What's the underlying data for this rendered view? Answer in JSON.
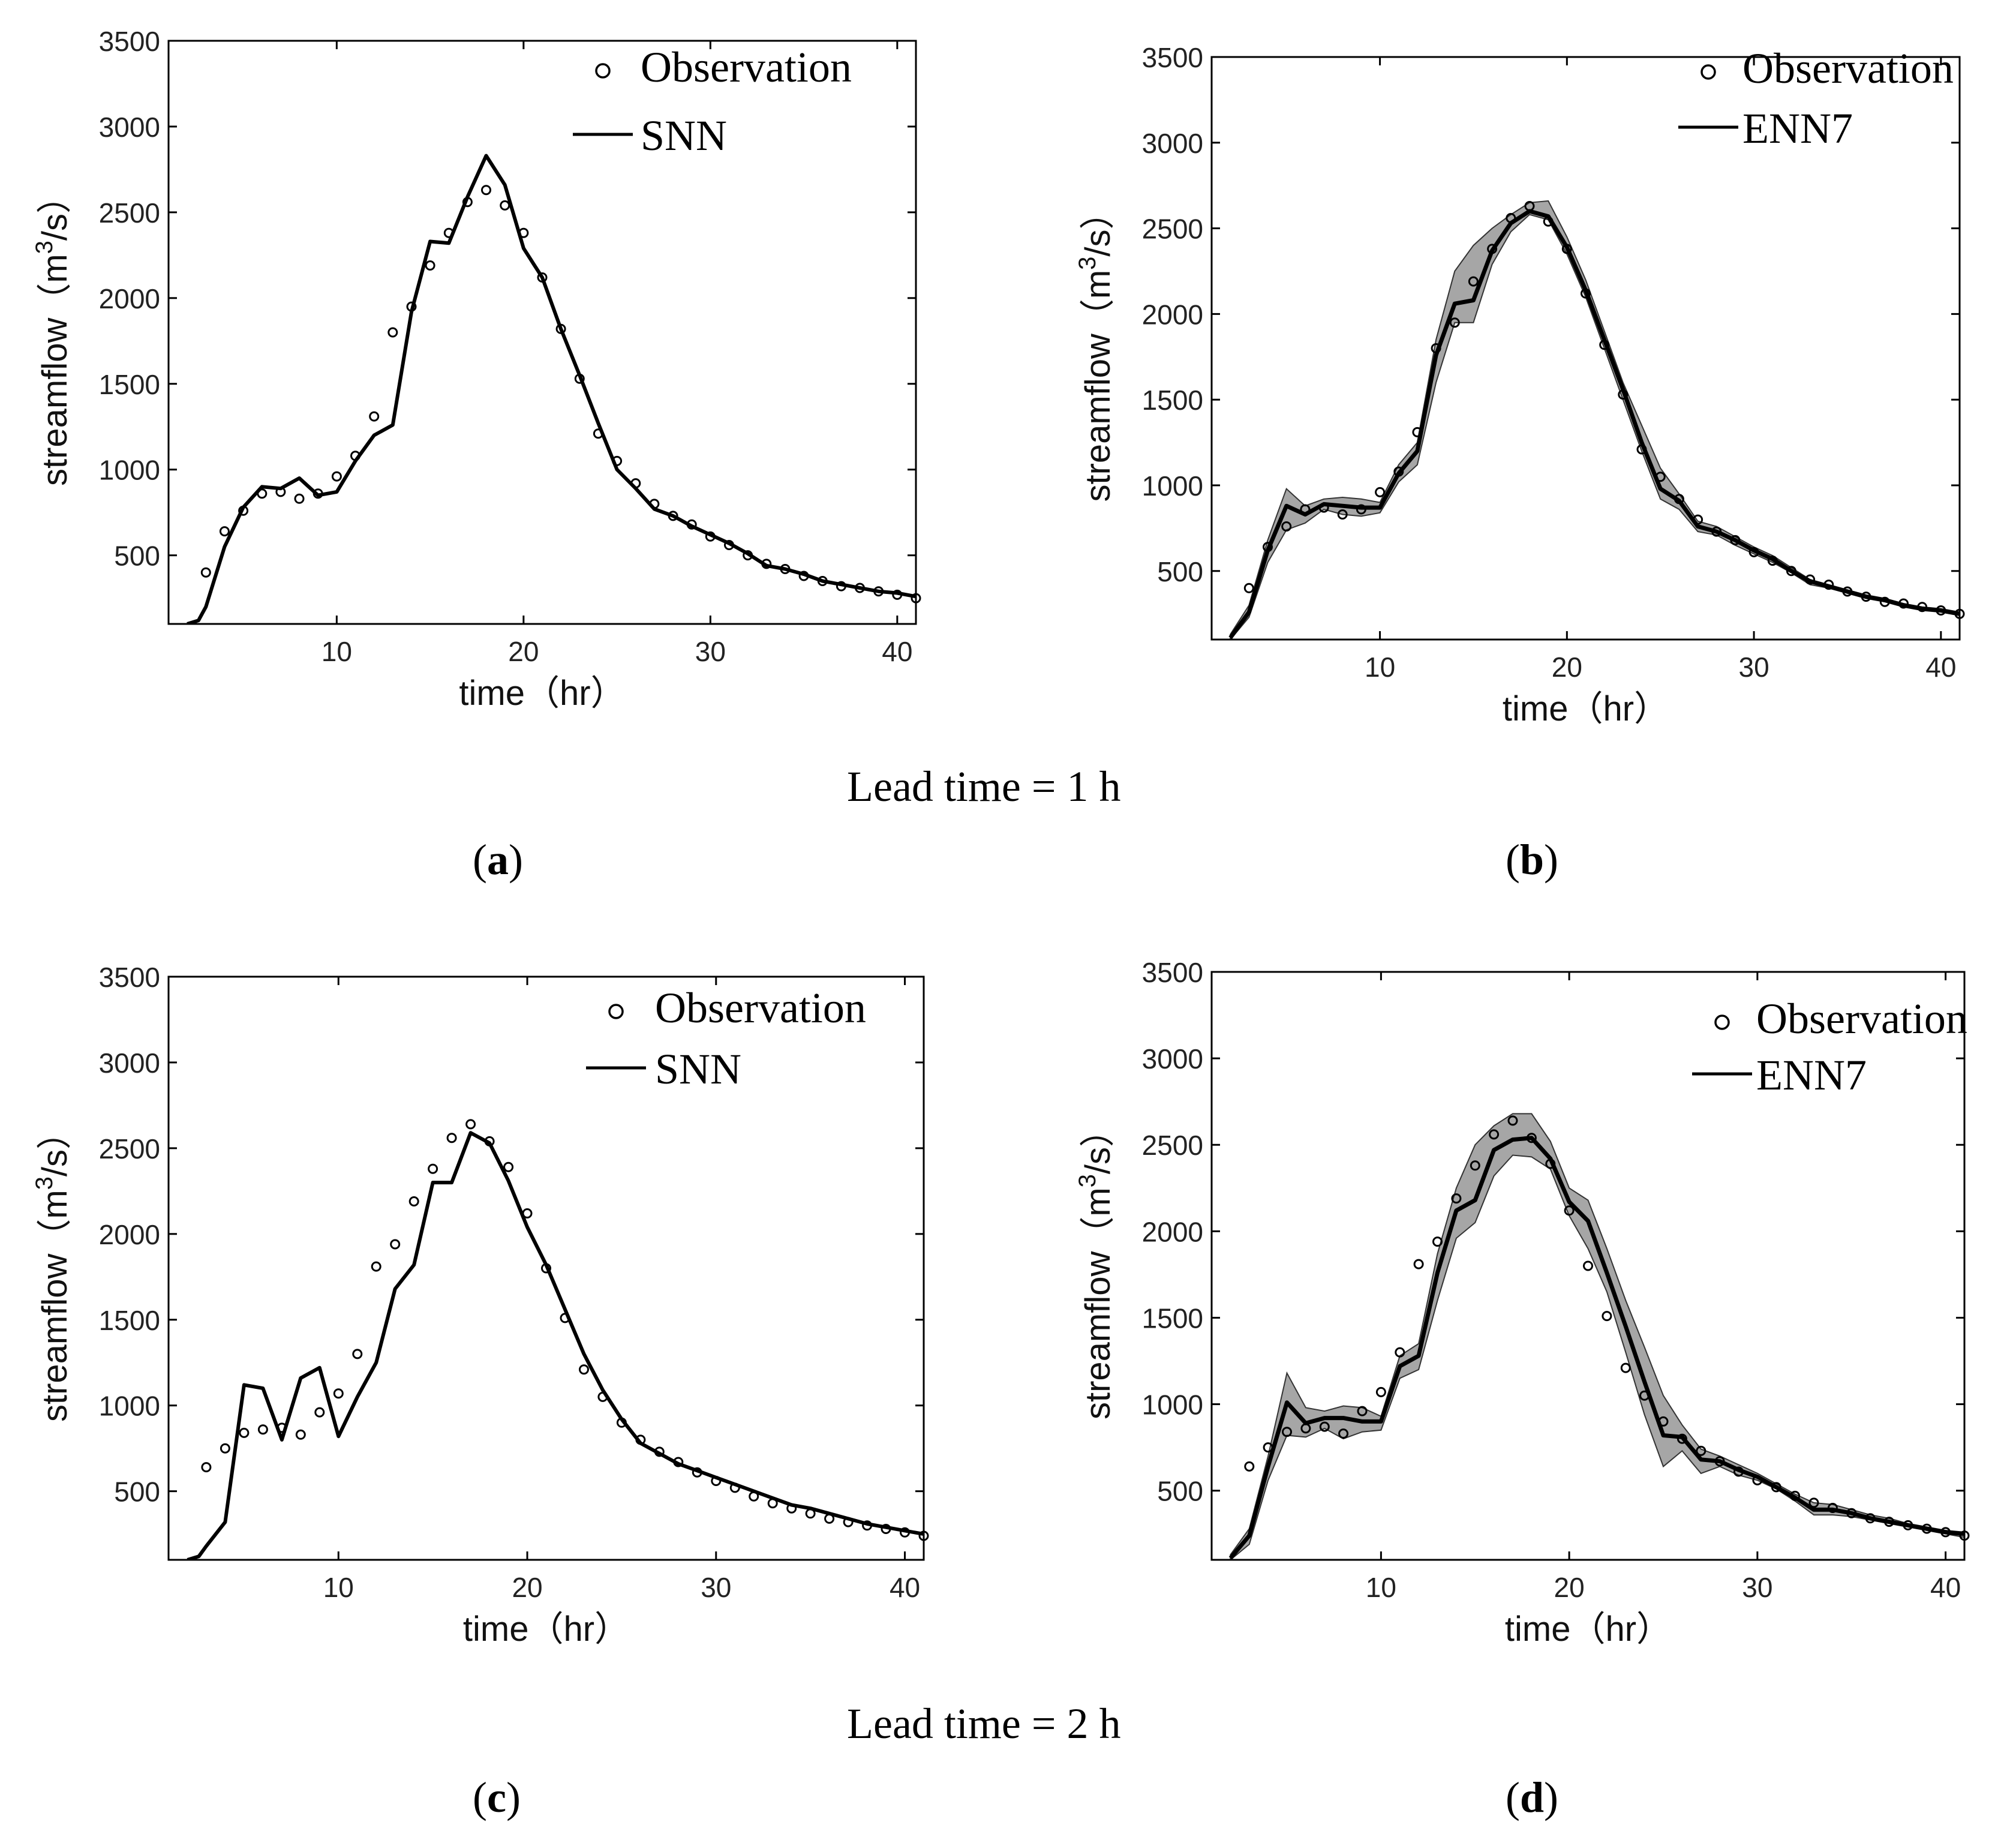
{
  "figure": {
    "captions": {
      "lead1": "Lead time = 1 h",
      "lead2": "Lead time = 2 h",
      "a": "a",
      "b": "b",
      "c": "c",
      "d": "d"
    }
  },
  "chart_data": [
    {
      "id": "a",
      "type": "line",
      "xlabel": "time（hr）",
      "ylabel_main": "streamflow（m",
      "ylabel_sup": "3",
      "ylabel_tail": "/s）",
      "xlim": [
        1,
        41
      ],
      "ylim": [
        100,
        3500
      ],
      "xticks": [
        10,
        20,
        30,
        40
      ],
      "yticks": [
        500,
        1000,
        1500,
        2000,
        2500,
        3000,
        3500
      ],
      "legend": {
        "position": "top-right",
        "entries": [
          "Observation",
          "SNN"
        ]
      },
      "observation": {
        "name": "Observation",
        "x": [
          3,
          4,
          5,
          6,
          7,
          8,
          9,
          10,
          11,
          12,
          13,
          14,
          15,
          16,
          17,
          18,
          19,
          20,
          21,
          22,
          23,
          24,
          25,
          26,
          27,
          28,
          29,
          30,
          31,
          32,
          33,
          34,
          35,
          36,
          37,
          38,
          39,
          40,
          41
        ],
        "y": [
          400,
          640,
          760,
          860,
          870,
          830,
          860,
          960,
          1080,
          1310,
          1800,
          1950,
          2190,
          2380,
          2560,
          2630,
          2540,
          2380,
          2120,
          1820,
          1530,
          1210,
          1050,
          920,
          800,
          730,
          680,
          610,
          560,
          500,
          450,
          420,
          380,
          350,
          320,
          310,
          290,
          270,
          250
        ]
      },
      "series": [
        {
          "name": "SNN",
          "x": [
            2,
            2.6,
            3,
            4,
            5,
            6,
            7,
            8,
            9,
            10,
            11,
            12,
            13,
            14,
            15,
            16,
            17,
            18,
            19,
            20,
            21,
            22,
            23,
            24,
            25,
            26,
            27,
            28,
            29,
            30,
            31,
            32,
            33,
            34,
            35,
            36,
            37,
            38,
            39,
            40,
            41
          ],
          "y": [
            100,
            120,
            200,
            550,
            780,
            900,
            890,
            950,
            850,
            870,
            1050,
            1200,
            1260,
            1920,
            2330,
            2320,
            2590,
            2830,
            2660,
            2290,
            2120,
            1820,
            1550,
            1270,
            1000,
            890,
            770,
            730,
            670,
            620,
            570,
            510,
            440,
            420,
            390,
            350,
            330,
            310,
            290,
            280,
            260
          ]
        }
      ]
    },
    {
      "id": "b",
      "type": "line",
      "xlabel": "time（hr）",
      "ylabel_main": "streamflow（m",
      "ylabel_sup": "3",
      "ylabel_tail": "/s）",
      "xlim": [
        1,
        41
      ],
      "ylim": [
        100,
        3500
      ],
      "xticks": [
        10,
        20,
        30,
        40
      ],
      "yticks": [
        500,
        1000,
        1500,
        2000,
        2500,
        3000,
        3500
      ],
      "legend": {
        "position": "top-right",
        "entries": [
          "Observation",
          "ENN7"
        ]
      },
      "observation": {
        "name": "Observation",
        "x": [
          3,
          4,
          5,
          6,
          7,
          8,
          9,
          10,
          11,
          12,
          13,
          14,
          15,
          16,
          17,
          18,
          19,
          20,
          21,
          22,
          23,
          24,
          25,
          26,
          27,
          28,
          29,
          30,
          31,
          32,
          33,
          34,
          35,
          36,
          37,
          38,
          39,
          40,
          41
        ],
        "y": [
          400,
          640,
          760,
          860,
          870,
          830,
          860,
          960,
          1080,
          1310,
          1800,
          1950,
          2190,
          2380,
          2560,
          2630,
          2540,
          2380,
          2120,
          1820,
          1530,
          1210,
          1050,
          920,
          800,
          730,
          680,
          610,
          560,
          500,
          450,
          420,
          380,
          350,
          320,
          310,
          290,
          270,
          250
        ]
      },
      "band": {
        "x": [
          2,
          3,
          4,
          5,
          6,
          7,
          8,
          9,
          10,
          11,
          12,
          13,
          14,
          15,
          16,
          17,
          18,
          19,
          20,
          21,
          22,
          23,
          24,
          25,
          26,
          27,
          28,
          29,
          30,
          31,
          32,
          33,
          34,
          35,
          36,
          37,
          38,
          39,
          40,
          41
        ],
        "upper": [
          130,
          300,
          680,
          980,
          880,
          920,
          930,
          920,
          900,
          1120,
          1250,
          1850,
          2250,
          2400,
          2500,
          2580,
          2650,
          2660,
          2450,
          2200,
          1900,
          1600,
          1350,
          1100,
          950,
          790,
          760,
          700,
          640,
          590,
          520,
          450,
          420,
          390,
          360,
          340,
          310,
          290,
          280,
          260
        ],
        "lower": [
          100,
          230,
          550,
          740,
          780,
          860,
          830,
          820,
          840,
          1020,
          1120,
          1600,
          1950,
          1950,
          2290,
          2480,
          2580,
          2550,
          2350,
          2100,
          1800,
          1500,
          1200,
          920,
          860,
          730,
          710,
          650,
          600,
          550,
          490,
          420,
          400,
          370,
          340,
          320,
          290,
          270,
          260,
          240
        ]
      },
      "series": [
        {
          "name": "ENN7",
          "x": [
            2,
            3,
            4,
            5,
            6,
            7,
            8,
            9,
            10,
            11,
            12,
            13,
            14,
            15,
            16,
            17,
            18,
            19,
            20,
            21,
            22,
            23,
            24,
            25,
            26,
            27,
            28,
            29,
            30,
            31,
            32,
            33,
            34,
            35,
            36,
            37,
            38,
            39,
            40,
            41
          ],
          "y": [
            110,
            260,
            620,
            880,
            830,
            890,
            880,
            870,
            870,
            1070,
            1200,
            1760,
            2060,
            2080,
            2370,
            2530,
            2600,
            2570,
            2390,
            2140,
            1850,
            1560,
            1250,
            980,
            910,
            760,
            730,
            680,
            620,
            570,
            500,
            440,
            410,
            380,
            350,
            330,
            300,
            280,
            270,
            250
          ]
        }
      ]
    },
    {
      "id": "c",
      "type": "line",
      "xlabel": "time（hr）",
      "ylabel_main": "streamflow（m",
      "ylabel_sup": "3",
      "ylabel_tail": "/s）",
      "xlim": [
        1,
        41
      ],
      "ylim": [
        100,
        3500
      ],
      "xticks": [
        10,
        20,
        30,
        40
      ],
      "yticks": [
        500,
        1000,
        1500,
        2000,
        2500,
        3000,
        3500
      ],
      "legend": {
        "position": "top-right",
        "entries": [
          "Observation",
          "SNN"
        ]
      },
      "observation": {
        "name": "Observation",
        "x": [
          3,
          4,
          5,
          6,
          7,
          8,
          9,
          10,
          11,
          12,
          13,
          14,
          15,
          16,
          17,
          18,
          19,
          20,
          21,
          22,
          23,
          24,
          25,
          26,
          27,
          28,
          29,
          30,
          31,
          32,
          33,
          34,
          35,
          36,
          37,
          38,
          39,
          40,
          41
        ],
        "y": [
          640,
          750,
          840,
          860,
          870,
          830,
          960,
          1070,
          1300,
          1810,
          1940,
          2190,
          2380,
          2560,
          2640,
          2540,
          2390,
          2120,
          1800,
          1510,
          1210,
          1050,
          900,
          800,
          730,
          670,
          610,
          560,
          520,
          470,
          430,
          400,
          370,
          340,
          320,
          300,
          280,
          260,
          240
        ]
      },
      "series": [
        {
          "name": "SNN",
          "x": [
            2,
            2.6,
            3,
            4,
            5,
            6,
            7,
            8,
            9,
            10,
            11,
            12,
            13,
            14,
            15,
            16,
            17,
            18,
            19,
            20,
            21,
            22,
            23,
            24,
            25,
            26,
            27,
            28,
            29,
            30,
            31,
            32,
            33,
            34,
            35,
            36,
            37,
            38,
            39,
            40,
            41
          ],
          "y": [
            100,
            120,
            180,
            320,
            1120,
            1100,
            800,
            1160,
            1220,
            820,
            1050,
            1250,
            1680,
            1820,
            2300,
            2300,
            2590,
            2530,
            2310,
            2040,
            1820,
            1560,
            1300,
            1090,
            920,
            780,
            720,
            660,
            620,
            580,
            540,
            500,
            460,
            420,
            400,
            370,
            340,
            310,
            290,
            270,
            250
          ]
        }
      ]
    },
    {
      "id": "d",
      "type": "line",
      "xlabel": "time（hr）",
      "ylabel_main": "streamflow（m",
      "ylabel_sup": "3",
      "ylabel_tail": "/s）",
      "xlim": [
        1,
        41
      ],
      "ylim": [
        100,
        3500
      ],
      "xticks": [
        10,
        20,
        30,
        40
      ],
      "yticks": [
        500,
        1000,
        1500,
        2000,
        2500,
        3000,
        3500
      ],
      "legend": {
        "position": "top-right",
        "entries": [
          "Observation",
          "ENN7"
        ]
      },
      "observation": {
        "name": "Observation",
        "x": [
          3,
          4,
          5,
          6,
          7,
          8,
          9,
          10,
          11,
          12,
          13,
          14,
          15,
          16,
          17,
          18,
          19,
          20,
          21,
          22,
          23,
          24,
          25,
          26,
          27,
          28,
          29,
          30,
          31,
          32,
          33,
          34,
          35,
          36,
          37,
          38,
          39,
          40,
          41
        ],
        "y": [
          640,
          750,
          840,
          860,
          870,
          830,
          960,
          1070,
          1300,
          1810,
          1940,
          2190,
          2380,
          2560,
          2640,
          2540,
          2390,
          2120,
          1800,
          1510,
          1210,
          1050,
          900,
          800,
          730,
          670,
          610,
          560,
          520,
          470,
          430,
          400,
          370,
          340,
          320,
          300,
          280,
          260,
          240
        ]
      },
      "band": {
        "x": [
          2,
          3,
          4,
          5,
          6,
          7,
          8,
          9,
          10,
          11,
          12,
          13,
          14,
          15,
          16,
          17,
          18,
          19,
          20,
          21,
          22,
          23,
          24,
          25,
          26,
          27,
          28,
          29,
          30,
          31,
          32,
          33,
          34,
          35,
          36,
          37,
          38,
          39,
          40,
          41
        ],
        "upper": [
          130,
          280,
          700,
          1180,
          980,
          960,
          990,
          980,
          930,
          1280,
          1350,
          1870,
          2250,
          2500,
          2610,
          2680,
          2680,
          2520,
          2250,
          2180,
          1900,
          1600,
          1330,
          1050,
          880,
          740,
          700,
          650,
          600,
          540,
          480,
          430,
          420,
          390,
          360,
          340,
          310,
          290,
          270,
          260
        ],
        "lower": [
          100,
          190,
          560,
          820,
          810,
          860,
          800,
          840,
          850,
          1150,
          1200,
          1600,
          1960,
          2050,
          2320,
          2440,
          2430,
          2360,
          2090,
          1900,
          1650,
          1300,
          940,
          640,
          730,
          600,
          640,
          590,
          560,
          510,
          440,
          360,
          360,
          350,
          330,
          310,
          290,
          270,
          250,
          230
        ]
      },
      "series": [
        {
          "name": "ENN7",
          "x": [
            2,
            3,
            4,
            5,
            6,
            7,
            8,
            9,
            10,
            11,
            12,
            13,
            14,
            15,
            16,
            17,
            18,
            19,
            20,
            21,
            22,
            23,
            24,
            25,
            26,
            27,
            28,
            29,
            30,
            31,
            32,
            33,
            34,
            35,
            36,
            37,
            38,
            39,
            40,
            41
          ],
          "y": [
            110,
            240,
            640,
            1010,
            890,
            920,
            920,
            900,
            900,
            1220,
            1280,
            1760,
            2120,
            2180,
            2470,
            2530,
            2540,
            2420,
            2170,
            2060,
            1760,
            1450,
            1130,
            820,
            810,
            680,
            670,
            620,
            580,
            520,
            460,
            390,
            390,
            370,
            340,
            320,
            300,
            280,
            260,
            250
          ]
        }
      ]
    }
  ]
}
